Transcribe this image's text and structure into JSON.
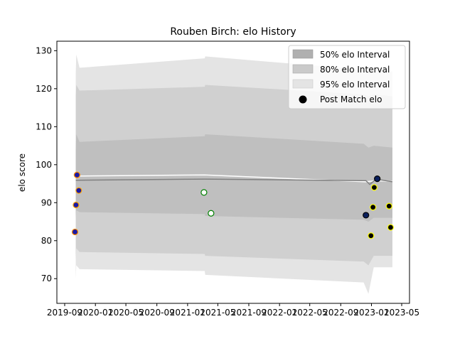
{
  "chart_data": {
    "type": "scatter",
    "title": "Rouben Birch: elo History",
    "xlabel": "",
    "ylabel": "elo score",
    "xlim": [
      "2019-08-01",
      "2023-06-01"
    ],
    "ylim": [
      63.5,
      132.5
    ],
    "x_ticks": [
      "2019-09",
      "2020-01",
      "2020-05",
      "2020-09",
      "2021-01",
      "2021-05",
      "2021-09",
      "2022-01",
      "2022-05",
      "2022-09",
      "2023-01",
      "2023-05"
    ],
    "x_tick_labels": [
      "2019-09",
      "2020-01",
      "2020-05",
      "2020-09",
      "2021-01",
      "2021-05",
      "2021-09",
      "2022-01",
      "2022-05",
      "2022-09",
      "2023-01",
      "2023-05"
    ],
    "y_ticks": [
      70,
      80,
      90,
      100,
      110,
      120,
      130
    ],
    "legend": {
      "placement": "top-right",
      "entries": [
        "50% elo Interval",
        "80% elo Interval",
        "95% elo Interval",
        "Post Match elo"
      ]
    },
    "bands": {
      "x": [
        "2019-10-15",
        "2019-10-17",
        "2019-10-30",
        "2021-03-10",
        "2021-03-12",
        "2022-12-01",
        "2022-12-20",
        "2023-01-10",
        "2023-03-25"
      ],
      "p95_upper": [
        124,
        129,
        125.5,
        128,
        128.5,
        125,
        124.5,
        125,
        124.5
      ],
      "p95_lower": [
        70,
        73.5,
        72.5,
        72,
        71,
        69,
        66,
        73,
        73
      ],
      "p80_upper": [
        118,
        121,
        119.5,
        120.5,
        121,
        118.5,
        118,
        118.5,
        118
      ],
      "p80_lower": [
        75,
        78,
        77,
        76.5,
        76,
        74.5,
        73.5,
        76,
        76
      ],
      "p50_upper": [
        104,
        108,
        106,
        107.5,
        108,
        105.5,
        104.5,
        105,
        104.5
      ],
      "p50_lower": [
        86,
        88,
        87.5,
        87,
        86.5,
        85.5,
        85,
        86,
        86
      ]
    },
    "mean_lines": [
      {
        "x": [
          "2019-10-15",
          "2021-03-10",
          "2022-12-10",
          "2023-01-20",
          "2023-03-25"
        ],
        "y": [
          97.0,
          97.3,
          95.5,
          95.8,
          95.6
        ],
        "color": "#ffffff"
      },
      {
        "x": [
          "2019-10-15",
          "2021-03-10",
          "2022-12-10",
          "2022-12-25",
          "2023-01-20",
          "2023-03-25"
        ],
        "y": [
          95.9,
          96.2,
          95.8,
          94.8,
          96.2,
          95.5
        ],
        "color": "#808080"
      }
    ],
    "points": [
      {
        "date": "2019-10-12",
        "elo": 82.3,
        "fill": "#1a1aa6",
        "edge": "#ff8c00"
      },
      {
        "date": "2019-10-16",
        "elo": 89.4,
        "fill": "#1a1aa6",
        "edge": "#ffa500"
      },
      {
        "date": "2019-10-20",
        "elo": 97.3,
        "fill": "#1a1aa6",
        "edge": "#ff8c00"
      },
      {
        "date": "2019-10-27",
        "elo": 93.2,
        "fill": "#1a1aa6",
        "edge": "#ffa500"
      },
      {
        "date": "2021-03-07",
        "elo": 92.7,
        "fill": "#ffffff",
        "edge": "#008000"
      },
      {
        "date": "2021-04-04",
        "elo": 87.2,
        "fill": "#ffffff",
        "edge": "#008000"
      },
      {
        "date": "2022-12-10",
        "elo": 86.7,
        "fill": "#0a1f5c",
        "edge": "#000000"
      },
      {
        "date": "2022-12-30",
        "elo": 81.3,
        "fill": "#000000",
        "edge": "#ffff00"
      },
      {
        "date": "2023-01-07",
        "elo": 88.8,
        "fill": "#000000",
        "edge": "#ffff00"
      },
      {
        "date": "2023-01-12",
        "elo": 94.0,
        "fill": "#000000",
        "edge": "#ffff00"
      },
      {
        "date": "2023-01-24",
        "elo": 96.3,
        "fill": "#0a1f5c",
        "edge": "#000000"
      },
      {
        "date": "2023-03-12",
        "elo": 89.1,
        "fill": "#000000",
        "edge": "#ffff00"
      },
      {
        "date": "2023-03-18",
        "elo": 83.5,
        "fill": "#000000",
        "edge": "#ffff00"
      }
    ],
    "colors": {
      "p50": "#bfbfbf",
      "p80": "#d0d0d0",
      "p95": "#e4e4e4",
      "legend_p50": "#b0b0b0",
      "legend_p80": "#cacaca",
      "legend_p95": "#e4e4e4"
    }
  }
}
